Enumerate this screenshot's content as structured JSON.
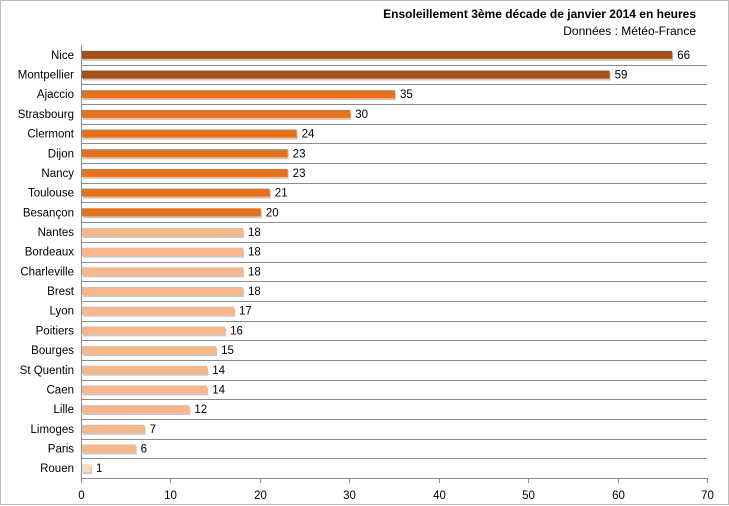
{
  "chart_data": {
    "type": "bar",
    "orientation": "horizontal",
    "title": "Ensoleillement 3ème décade de janvier 2014 en heures",
    "subtitle": "Données : Météo-France",
    "categories": [
      "Nice",
      "Montpellier",
      "Ajaccio",
      "Strasbourg",
      "Clermont",
      "Dijon",
      "Nancy",
      "Toulouse",
      "Besançon",
      "Nantes",
      "Bordeaux",
      "Charleville",
      "Brest",
      "Lyon",
      "Poitiers",
      "Bourges",
      "St Quentin",
      "Caen",
      "Lille",
      "Limoges",
      "Paris",
      "Rouen"
    ],
    "values": [
      66,
      59,
      35,
      30,
      24,
      23,
      23,
      21,
      20,
      18,
      18,
      18,
      18,
      17,
      16,
      15,
      14,
      14,
      12,
      7,
      6,
      1
    ],
    "xlim": [
      0,
      70
    ],
    "xticks": [
      0,
      10,
      20,
      30,
      40,
      50,
      60,
      70
    ],
    "xlabel": "",
    "ylabel": "",
    "grid": "horizontal",
    "legend": "none",
    "colors": {
      "top": "#a0521a",
      "mid": "#e2721d",
      "light": "#f6b78b",
      "palest": "#f8dcc2",
      "grid": "#8c8c8c",
      "axis": "#8c8c8c"
    }
  }
}
